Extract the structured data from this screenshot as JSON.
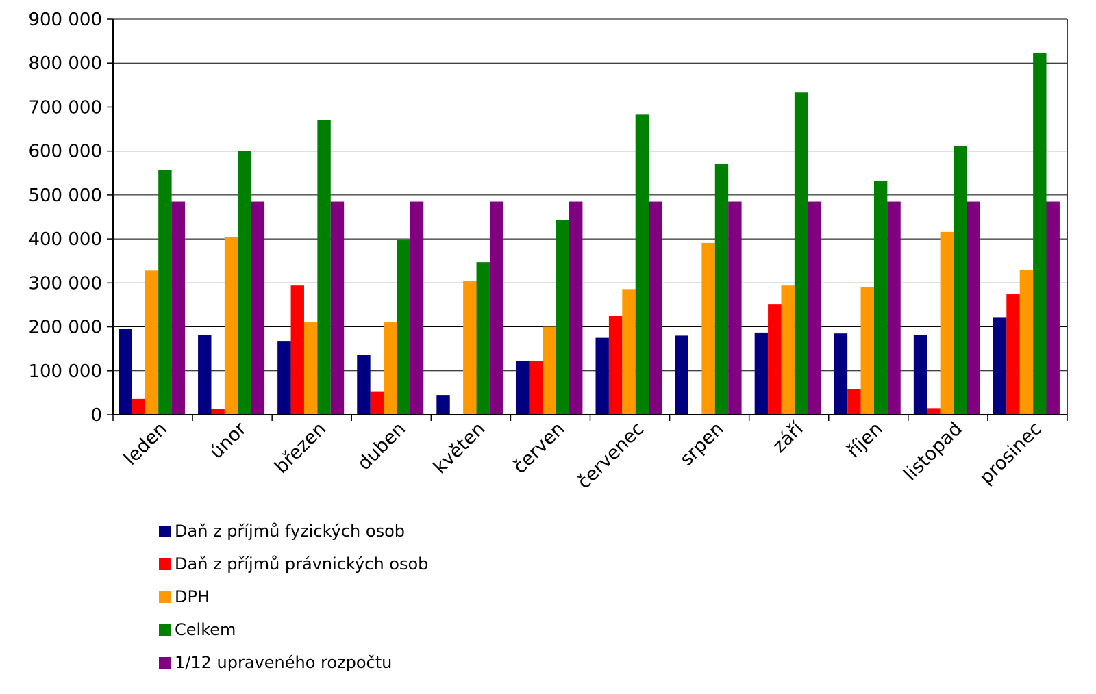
{
  "chart_data": {
    "type": "bar",
    "title": "",
    "xlabel": "",
    "ylabel": "",
    "ylim": [
      0,
      900000
    ],
    "yticks": [
      0,
      100000,
      200000,
      300000,
      400000,
      500000,
      600000,
      700000,
      800000,
      900000
    ],
    "ytick_labels": [
      "0",
      "100 000",
      "200 000",
      "300 000",
      "400 000",
      "500 000",
      "600 000",
      "700 000",
      "800 000",
      "900 000"
    ],
    "grid": true,
    "legend_position": "bottom-left",
    "categories": [
      "leden",
      "únor",
      "březen",
      "duben",
      "květen",
      "červen",
      "červenec",
      "srpen",
      "září",
      "říjen",
      "listopad",
      "prosinec"
    ],
    "series": [
      {
        "name": "Daň z příjmů fyzických osob",
        "color": "#000080",
        "values": [
          195000,
          182000,
          168000,
          136000,
          45000,
          122000,
          175000,
          180000,
          187000,
          185000,
          182000,
          222000
        ]
      },
      {
        "name": "Daň z příjmů právnických osob",
        "color": "#ff0000",
        "values": [
          36000,
          14000,
          294000,
          52000,
          1000,
          122000,
          225000,
          1000,
          252000,
          58000,
          15000,
          274000
        ]
      },
      {
        "name": "DPH",
        "color": "#ff9900",
        "values": [
          328000,
          404000,
          211000,
          211000,
          304000,
          200000,
          286000,
          391000,
          294000,
          291000,
          416000,
          330000
        ]
      },
      {
        "name": "Celkem",
        "color": "#008000",
        "values": [
          556000,
          600000,
          671000,
          397000,
          347000,
          443000,
          683000,
          570000,
          733000,
          532000,
          611000,
          823000
        ]
      },
      {
        "name": "1/12 upraveného rozpočtu",
        "color": "#800080",
        "values": [
          485000,
          485000,
          485000,
          485000,
          485000,
          485000,
          485000,
          485000,
          485000,
          485000,
          485000,
          485000
        ]
      }
    ]
  }
}
